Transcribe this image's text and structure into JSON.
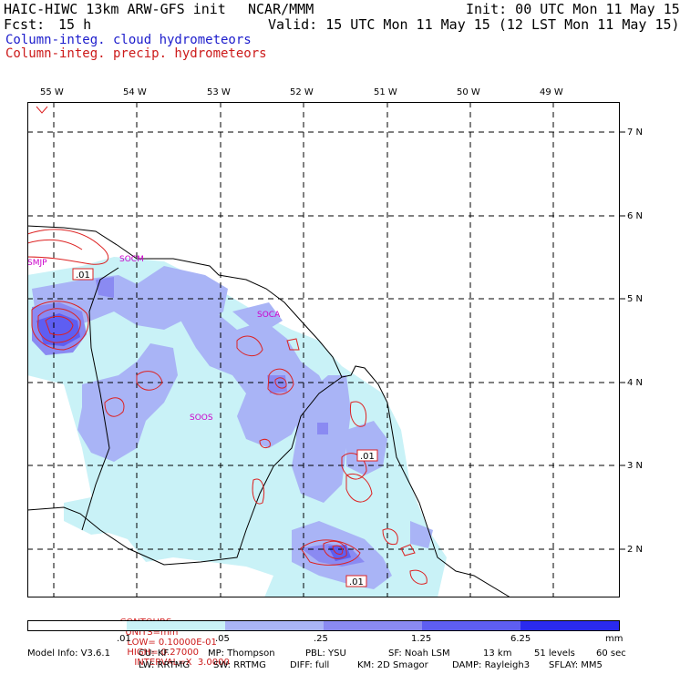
{
  "header": {
    "model_title": "HAIC-HIWC 13km ARW-GFS init",
    "org": "NCAR/MMM",
    "init": "Init: 00 UTC Mon 11 May 15",
    "fcst_label": "Fcst:",
    "fcst_value": "15 h",
    "valid": "Valid: 15 UTC Mon 11 May 15 (12 LST Mon 11 May 15)",
    "field1": "Column-integ. cloud hydrometeors",
    "field2": "Column-integ. precip. hydrometeors"
  },
  "map": {
    "lon_labels": [
      "55 W",
      "54 W",
      "53 W",
      "52 W",
      "51 W",
      "50 W",
      "49 W"
    ],
    "lat_labels": [
      "7 N",
      "6 N",
      "5 N",
      "4 N",
      "3 N",
      "2 N"
    ],
    "stations": [
      "SMJP",
      "SOCM",
      "SOCA",
      "SOOS"
    ],
    "contour_labels": [
      ".01",
      ".01",
      ".01"
    ]
  },
  "contours_info": {
    "contours": "CONTOURS:",
    "units": "UNITS=mm",
    "low": "LOW= 0.10000E-01",
    "high": "HIGH= 0.27000",
    "interval": "INTERVAL=X  3.0000"
  },
  "colorbar": {
    "labels": [
      ".01",
      ".05",
      ".25",
      "1.25",
      "6.25"
    ],
    "units": "mm",
    "colors": [
      "#ffffff",
      "#c9f2f7",
      "#a9b4f6",
      "#8a8af2",
      "#5e5ef2",
      "#2a2aee",
      "#1010e8"
    ]
  },
  "footer": {
    "line1": {
      "model_info": "Model Info: V3.6.1",
      "cu": "CU: KF",
      "mp": "MP: Thompson",
      "pbl": "PBL: YSU",
      "sf": "SF: Noah LSM",
      "res": "13 km",
      "levels": "51 levels",
      "dt": "60 sec"
    },
    "line2": {
      "lw": "LW: RRTMG",
      "sw": "SW: RRTMG",
      "diff": "DIFF: full",
      "km": "KM: 2D Smagor",
      "damp": "DAMP: Rayleigh3",
      "sflay": "SFLAY: MM5"
    }
  }
}
